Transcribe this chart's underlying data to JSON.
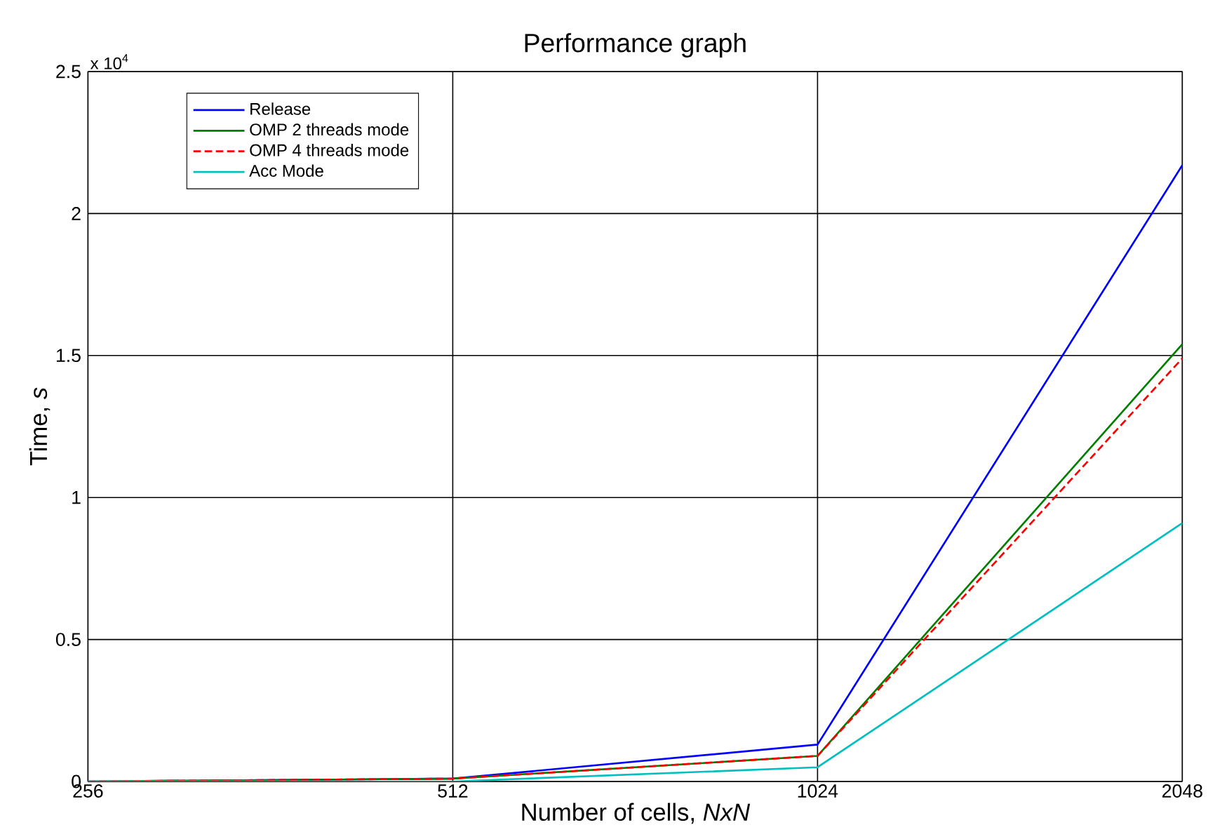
{
  "chart_data": {
    "type": "line",
    "title": "Performance graph",
    "xlabel": "Number of cells, *NxN*",
    "ylabel": "Time, *s*",
    "x": [
      256,
      512,
      1024,
      2048
    ],
    "log": "x",
    "xlim": [
      256,
      2048
    ],
    "xticks": [
      256,
      512,
      1024,
      2048
    ],
    "ylim": [
      0,
      2.5
    ],
    "yticks": [
      0,
      0.5,
      1,
      1.5,
      2,
      2.5
    ],
    "annotations": [
      "x 10$^{4}$"
    ],
    "grid": true,
    "legend": "top left",
    "series": [
      {
        "name": "Release",
        "color": "#0000ff",
        "line_style": "solid",
        "values": [
          0,
          0.01,
          0.13,
          2.17
        ]
      },
      {
        "name": "OMP 2 threads mode",
        "color": "#008000",
        "line_style": "solid",
        "values": [
          0,
          0.01,
          0.09,
          1.54
        ]
      },
      {
        "name": "OMP 4 threads mode",
        "color": "#ff0000",
        "line_style": "dashed",
        "values": [
          0,
          0.01,
          0.09,
          1.49
        ]
      },
      {
        "name": "Acc Mode",
        "color": "#00bfbf",
        "line_style": "solid",
        "values": [
          0,
          0,
          0.05,
          0.91
        ]
      }
    ]
  }
}
